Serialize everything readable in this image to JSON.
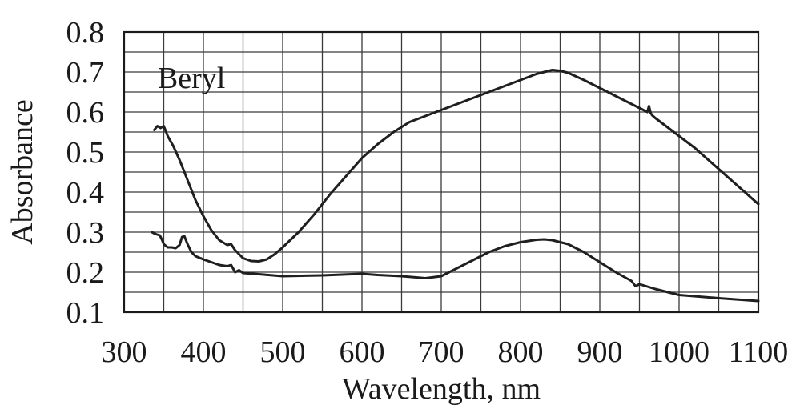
{
  "chart_data": {
    "type": "line",
    "title": "",
    "xlabel": "Wavelength, nm",
    "ylabel": "Absorbance",
    "xlim": [
      300,
      1100
    ],
    "ylim": [
      0.1,
      0.8
    ],
    "xticks": [
      300,
      400,
      500,
      600,
      700,
      800,
      900,
      1000,
      1100
    ],
    "yticks": [
      0.1,
      0.2,
      0.3,
      0.4,
      0.5,
      0.6,
      0.7,
      0.8
    ],
    "xtick_labels": [
      "300",
      "400",
      "500",
      "600",
      "700",
      "800",
      "900",
      "1000",
      "1100"
    ],
    "ytick_labels": [
      "0.1",
      "0.2",
      "0.3",
      "0.4",
      "0.5",
      "0.6",
      "0.7",
      "0.8"
    ],
    "xgrid_step": 50,
    "ygrid_step": 0.05,
    "grid": true,
    "legend": "none",
    "annotations": [
      {
        "text": "Beryl",
        "x": 385,
        "y": 0.66
      }
    ],
    "series": [
      {
        "x": [
          338,
          342,
          346,
          350,
          355,
          362,
          370,
          380,
          390,
          400,
          410,
          420,
          430,
          435,
          440,
          450,
          460,
          470,
          480,
          490,
          500,
          520,
          540,
          560,
          580,
          600,
          620,
          640,
          660,
          680,
          700,
          720,
          740,
          760,
          780,
          800,
          820,
          840,
          850,
          860,
          880,
          900,
          920,
          940,
          950,
          960,
          962,
          964,
          966,
          970,
          980,
          1000,
          1020,
          1040,
          1060,
          1080,
          1100
        ],
        "values": [
          0.555,
          0.565,
          0.56,
          0.565,
          0.54,
          0.515,
          0.48,
          0.43,
          0.38,
          0.34,
          0.305,
          0.28,
          0.268,
          0.27,
          0.255,
          0.235,
          0.228,
          0.227,
          0.232,
          0.245,
          0.262,
          0.3,
          0.345,
          0.395,
          0.44,
          0.485,
          0.52,
          0.55,
          0.575,
          0.59,
          0.605,
          0.62,
          0.635,
          0.65,
          0.665,
          0.68,
          0.695,
          0.705,
          0.703,
          0.698,
          0.68,
          0.66,
          0.64,
          0.62,
          0.61,
          0.6,
          0.615,
          0.598,
          0.592,
          0.585,
          0.57,
          0.54,
          0.51,
          0.475,
          0.44,
          0.405,
          0.37
        ]
      },
      {
        "x": [
          335,
          340,
          345,
          348,
          350,
          355,
          360,
          365,
          370,
          373,
          376,
          380,
          385,
          390,
          400,
          410,
          420,
          430,
          435,
          440,
          445,
          450,
          470,
          500,
          550,
          600,
          620,
          650,
          680,
          700,
          720,
          740,
          760,
          780,
          800,
          820,
          830,
          840,
          860,
          880,
          900,
          920,
          940,
          945,
          950,
          970,
          1000,
          1050,
          1100
        ],
        "values": [
          0.3,
          0.295,
          0.292,
          0.28,
          0.27,
          0.262,
          0.262,
          0.26,
          0.268,
          0.288,
          0.29,
          0.27,
          0.25,
          0.24,
          0.232,
          0.225,
          0.218,
          0.215,
          0.218,
          0.2,
          0.205,
          0.198,
          0.195,
          0.19,
          0.192,
          0.196,
          0.193,
          0.19,
          0.185,
          0.19,
          0.21,
          0.23,
          0.25,
          0.265,
          0.275,
          0.281,
          0.282,
          0.28,
          0.27,
          0.25,
          0.225,
          0.2,
          0.178,
          0.165,
          0.17,
          0.158,
          0.143,
          0.135,
          0.128
        ]
      }
    ]
  }
}
